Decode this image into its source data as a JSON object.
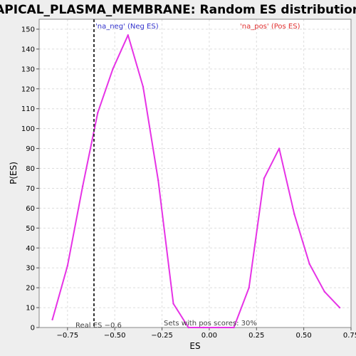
{
  "chart_data": {
    "type": "line",
    "title": "APICAL_PLASMA_MEMBRANE: Random ES distribution",
    "xlabel": "ES",
    "ylabel": "P(ES)",
    "xlim": [
      -0.9,
      0.75
    ],
    "ylim": [
      0,
      155
    ],
    "xticks": [
      -0.75,
      -0.5,
      -0.25,
      0.0,
      0.25,
      0.5,
      0.75
    ],
    "xtick_labels": [
      "−0.75",
      "−0.50",
      "−0.25",
      "0.00",
      "0.25",
      "0.50",
      "0.75"
    ],
    "yticks": [
      0,
      10,
      20,
      30,
      40,
      50,
      60,
      70,
      80,
      90,
      100,
      110,
      120,
      130,
      140,
      150
    ],
    "grid": true,
    "line_color": "#e633e6",
    "series": [
      {
        "x": [
          -0.83,
          -0.75,
          -0.67,
          -0.59,
          -0.51,
          -0.43,
          -0.35,
          -0.27,
          -0.19,
          -0.11,
          -0.03,
          0.05,
          0.13,
          0.21,
          0.29,
          0.37,
          0.45,
          0.53,
          0.61,
          0.69
        ],
        "y": [
          4,
          31,
          71,
          108,
          130,
          147,
          121,
          74,
          12,
          0,
          0,
          0,
          0,
          20,
          75,
          90,
          57,
          32,
          18,
          10
        ]
      }
    ],
    "real_es": -0.61,
    "annotations": {
      "neg_label": "'na_neg' (Neg ES)",
      "pos_label": "'na_pos' (Pos ES)",
      "real_es_label": "Real ES −0.6",
      "pos_scores_label": "Sets with pos scores: 30%"
    }
  }
}
